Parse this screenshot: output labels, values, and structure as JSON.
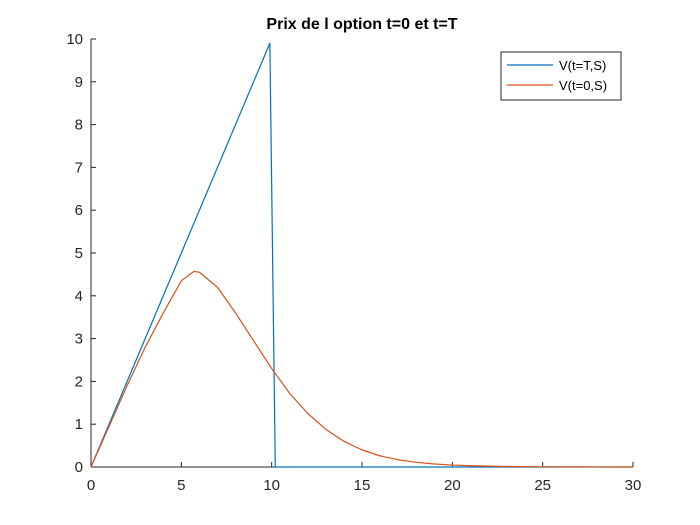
{
  "chart_data": {
    "type": "line",
    "title": "Prix de l option t=0 et t=T",
    "xlabel": "",
    "ylabel": "",
    "xlim": [
      0,
      30
    ],
    "ylim": [
      0,
      10
    ],
    "x_ticks": [
      0,
      5,
      10,
      15,
      20,
      25,
      30
    ],
    "y_ticks": [
      0,
      1,
      2,
      3,
      4,
      5,
      6,
      7,
      8,
      9,
      10
    ],
    "grid": false,
    "legend_position": "top-right",
    "series": [
      {
        "name": "V(t=T,S)",
        "color": "#0072BD",
        "x": [
          0,
          9.9,
          10.2,
          30
        ],
        "y": [
          0,
          9.9,
          0,
          0
        ]
      },
      {
        "name": "V(t=0,S)",
        "color": "#D95319",
        "x": [
          0,
          1,
          2,
          3,
          4,
          5,
          5.7,
          6,
          7,
          8,
          9,
          10,
          11,
          12,
          13,
          14,
          15,
          16,
          17,
          18,
          19,
          20,
          21,
          22,
          23,
          24,
          25,
          26,
          27,
          28,
          29,
          30
        ],
        "y": [
          0,
          0.95,
          1.9,
          2.8,
          3.6,
          4.35,
          4.57,
          4.55,
          4.2,
          3.6,
          2.95,
          2.3,
          1.72,
          1.25,
          0.88,
          0.6,
          0.4,
          0.26,
          0.17,
          0.11,
          0.07,
          0.045,
          0.03,
          0.02,
          0.012,
          0.008,
          0.005,
          0.003,
          0.002,
          0.001,
          0.0005,
          0.0003
        ]
      }
    ]
  }
}
